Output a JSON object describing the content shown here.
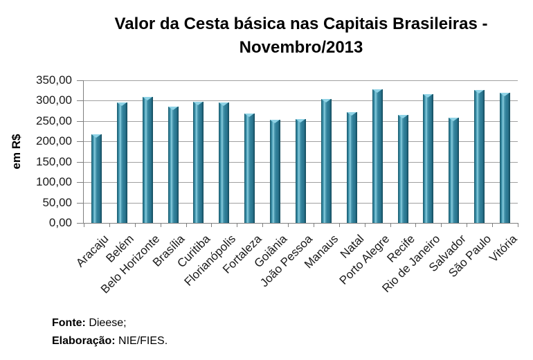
{
  "title_lines": [
    "Valor da Cesta básica nas Capitais Brasileiras -",
    "Novembro/2013"
  ],
  "footer": {
    "fonte_label": "Fonte:",
    "fonte_value": " Dieese;",
    "elaboracao_label": "Elaboração:",
    "elaboracao_value": " NIE/FIES."
  },
  "chart_data": {
    "type": "bar",
    "title": "Valor da Cesta básica nas Capitais Brasileiras - Novembro/2013",
    "xlabel": "",
    "ylabel": "em R$",
    "ylim": [
      0,
      350
    ],
    "ytick_interval": 50,
    "ytick_labels": [
      "0,00",
      "50,00",
      "100,00",
      "150,00",
      "200,00",
      "250,00",
      "300,00",
      "350,00"
    ],
    "grid": true,
    "legend": false,
    "bar_color": "#31859c",
    "categories": [
      "Aracaju",
      "Belém",
      "Belo Horizonte",
      "Brasília",
      "Curitiba",
      "Florianópolis",
      "Fortaleza",
      "Goiânia",
      "João Pessoa",
      "Manaus",
      "Natal",
      "Porto Alegre",
      "Recife",
      "Rio de Janeiro",
      "Salvador",
      "São Paulo",
      "Vitória"
    ],
    "values": [
      218,
      295,
      309,
      285,
      297,
      296,
      268,
      253,
      255,
      305,
      272,
      328,
      265,
      316,
      259,
      326,
      320
    ]
  }
}
